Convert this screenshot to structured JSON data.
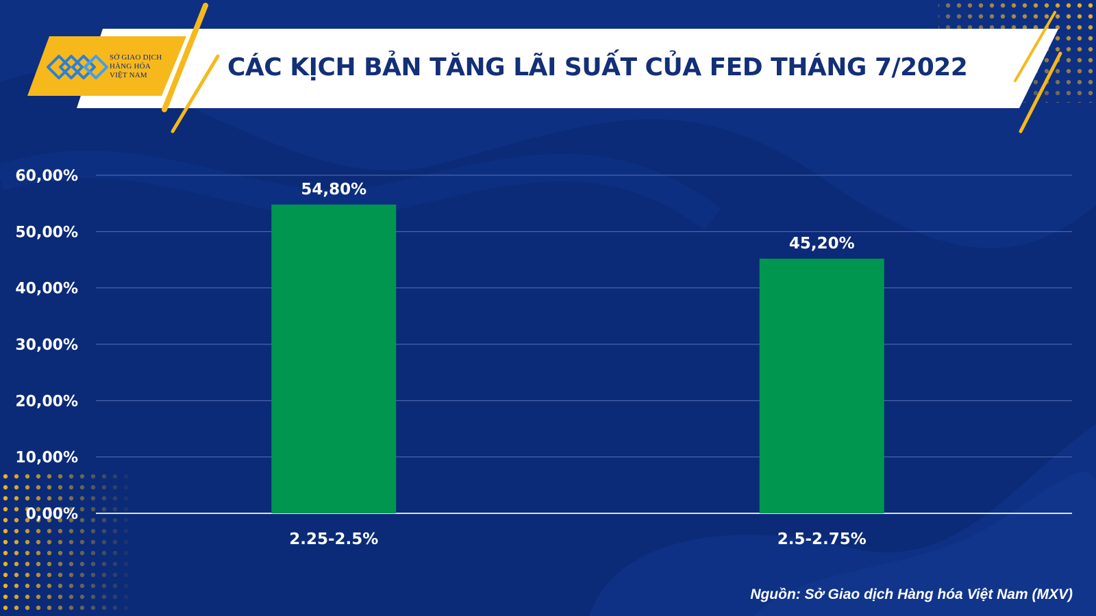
{
  "logo": {
    "lines": [
      "SỞ GIAO DỊCH",
      "HÀNG HÓA",
      "VIỆT NAM"
    ],
    "icon": "mxv-diamond-logo-icon"
  },
  "colors": {
    "background": "#0b2a78",
    "background_wave": "#0f3388",
    "accent_yellow": "#f7b81b",
    "bar": "#00964f",
    "title_text": "#132f77",
    "gridline": "#5a72b5"
  },
  "chart_data": {
    "type": "bar",
    "title": "CÁC KỊCH BẢN TĂNG LÃI SUẤT CỦA FED THÁNG 7/2022",
    "categories": [
      "2.25-2.5%",
      "2.5-2.75%"
    ],
    "values": [
      54.8,
      45.2
    ],
    "value_labels": [
      "54,80%",
      "45,20%"
    ],
    "xlabel": "",
    "ylabel": "",
    "ylim": [
      0,
      60
    ],
    "yticks": [
      0,
      10,
      20,
      30,
      40,
      50,
      60
    ],
    "ytick_labels": [
      "0,00%",
      "10,00%",
      "20,00%",
      "30,00%",
      "40,00%",
      "50,00%",
      "60,00%"
    ],
    "grid": true,
    "legend": "none"
  },
  "source": "Nguồn: Sở Giao dịch Hàng hóa Việt Nam (MXV)"
}
